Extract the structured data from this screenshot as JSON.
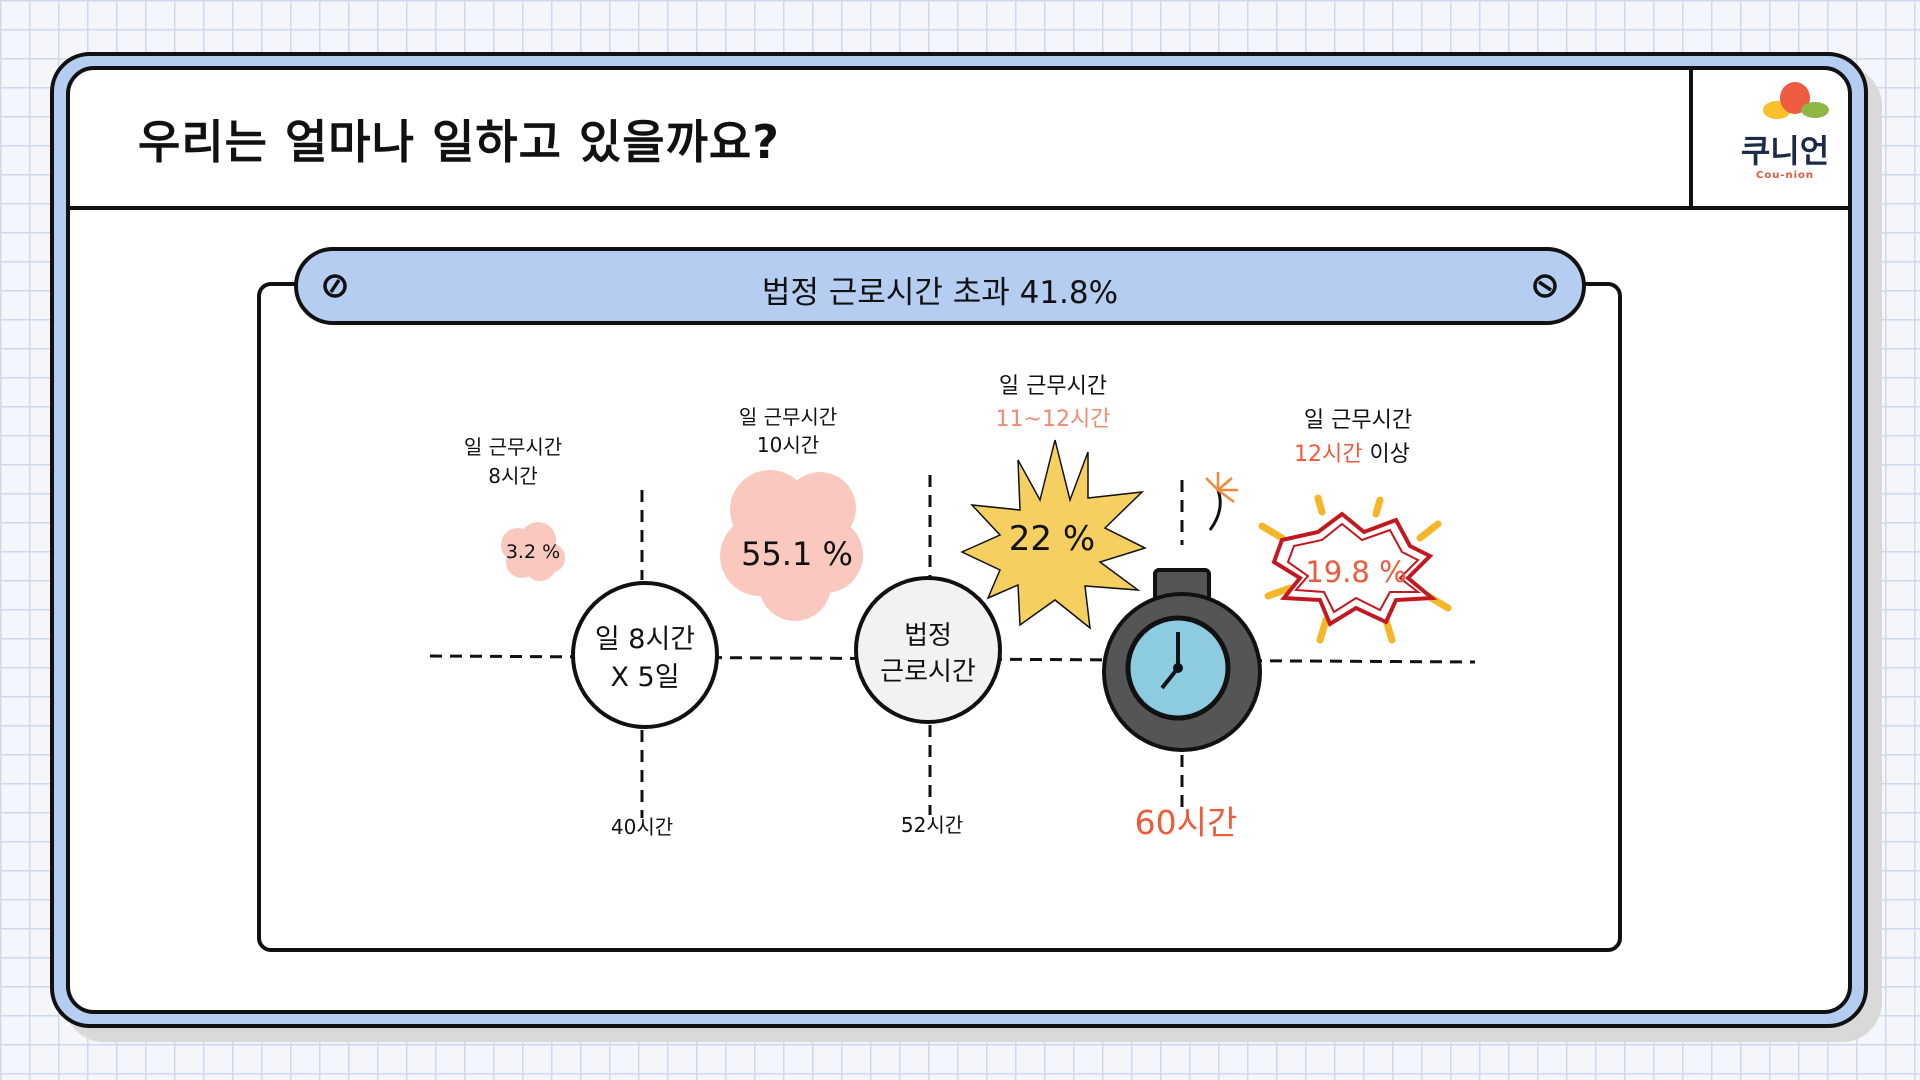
{
  "title": "우리는 얼마나 일하고 있을까요?",
  "logo": {
    "text": "쿠니언",
    "subtext": "Cou-nion"
  },
  "banner": {
    "text": "법정 근로시간 초과 41.8%"
  },
  "diagram": {
    "nodes": [
      {
        "line1": "일 8시간",
        "line2": "X 5일",
        "axis_label": "40시간"
      },
      {
        "line1": "법정",
        "line2": "근로시간",
        "axis_label": "52시간"
      },
      {
        "axis_label": "60시간"
      }
    ],
    "groups": [
      {
        "label_line1": "일 근무시간",
        "label_line2": "8시간",
        "percent": "3.2 %",
        "value": 3.2
      },
      {
        "label_line1": "일 근무시간",
        "label_line2": "10시간",
        "percent": "55.1 %",
        "value": 55.1
      },
      {
        "label_line1": "일 근무시간",
        "label_line2": "11~12시간",
        "percent": "22 %",
        "value": 22
      },
      {
        "label_line1": "일 근무시간",
        "label_line2_highlight": "12시간",
        "label_line2_rest": " 이상",
        "percent": "19.8 %",
        "value": 19.8
      }
    ]
  },
  "colors": {
    "accent_blue": "#b6cdf2",
    "highlight_red": "#f05a3a",
    "highlight_orange": "#f08a70",
    "cloud_pink": "#f9c9bf",
    "burst_yellow": "#f5d061",
    "bomb_gray": "#555555",
    "clock_blue": "#8ccbe0"
  }
}
